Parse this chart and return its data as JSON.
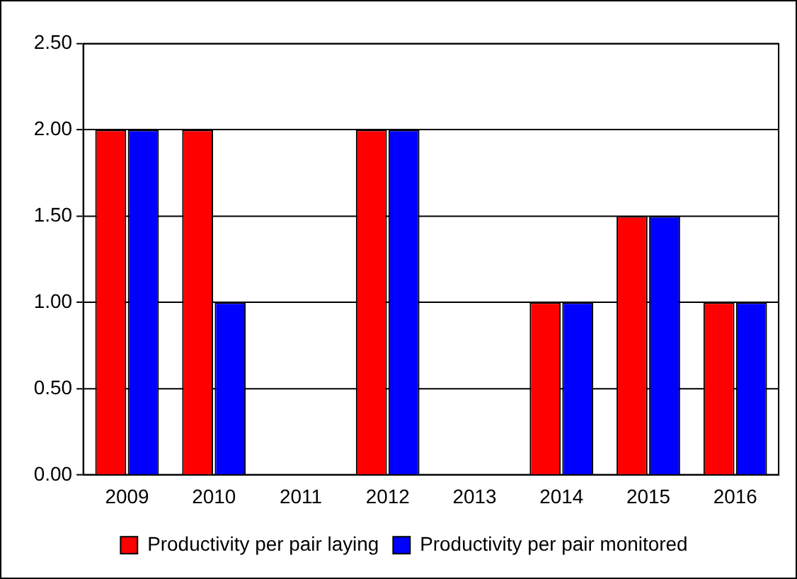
{
  "chart_data": {
    "type": "bar",
    "categories": [
      "2009",
      "2010",
      "2011",
      "2012",
      "2013",
      "2014",
      "2015",
      "2016"
    ],
    "series": [
      {
        "name": "Productivity per pair laying",
        "color": "#ff0000",
        "values": [
          2,
          2,
          0,
          2,
          0,
          1,
          1.5,
          1
        ]
      },
      {
        "name": "Productivity per pair monitored",
        "color": "#0000ff",
        "values": [
          2,
          1,
          0,
          2,
          0,
          1,
          1.5,
          1
        ]
      }
    ],
    "ylim": [
      0,
      2.5
    ],
    "yticks": [
      {
        "value": 0,
        "label": "0.00"
      },
      {
        "value": 0.5,
        "label": "0.50"
      },
      {
        "value": 1,
        "label": "1.00"
      },
      {
        "value": 1.5,
        "label": "1.50"
      },
      {
        "value": 2,
        "label": "2.00"
      },
      {
        "value": 2.5,
        "label": "2.50"
      }
    ],
    "grid": "y",
    "legend": "bottom"
  }
}
